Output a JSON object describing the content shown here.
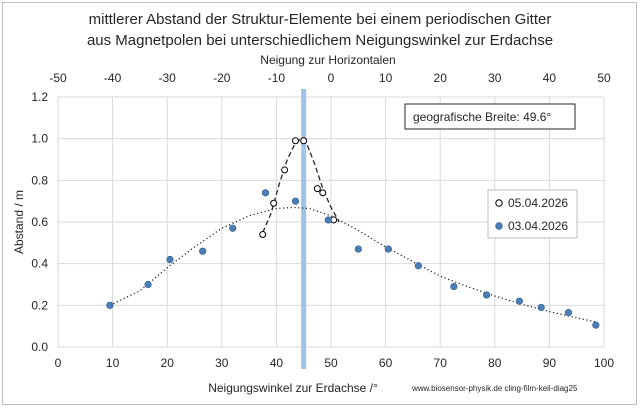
{
  "chart_data": {
    "type": "scatter",
    "title_lines": [
      "mittlerer Abstand der Struktur-Elemente bei einem periodischen Gitter",
      "aus Magnetpolen bei unterschiedlichem Neigungswinkel zur Erdachse"
    ],
    "xlabel": "Neigungswinkel zur Erdachse /°",
    "ylabel": "Abstand / m",
    "x2label": "Neigung zur Horizontalen",
    "xlim": [
      0,
      100
    ],
    "ylim": [
      0,
      1.2
    ],
    "x2lim": [
      -50,
      50
    ],
    "x_ticks": [
      "0",
      "10",
      "20",
      "30",
      "40",
      "50",
      "60",
      "70",
      "80",
      "90",
      "100"
    ],
    "y_ticks": [
      "0.0",
      "0.2",
      "0.4",
      "0.6",
      "0.8",
      "1.0",
      "1.2"
    ],
    "x2_ticks": [
      "-50",
      "-40",
      "-30",
      "-20",
      "-10",
      "0",
      "10",
      "20",
      "30",
      "40",
      "50"
    ],
    "grid": true,
    "legend_position": "right",
    "vertical_marker_x": 45,
    "annotation": "geografische Breite: 49.6°",
    "credit": "www.biosensor-physik.de  cling-film-keil-diag25",
    "series": [
      {
        "name": "05.04.2026",
        "marker": "open-circle",
        "color": "#000000",
        "x": [
          37.5,
          39.5,
          41.5,
          43.5,
          45.0,
          47.5,
          48.5,
          50.5
        ],
        "y": [
          0.54,
          0.69,
          0.85,
          0.99,
          0.99,
          0.76,
          0.74,
          0.61
        ]
      },
      {
        "name": "03.04.2026",
        "marker": "filled-circle",
        "color": "#4a7eb5",
        "x": [
          9.5,
          16.5,
          20.5,
          26.5,
          32.0,
          38.0,
          43.5,
          49.5,
          55.0,
          60.5,
          66.0,
          72.5,
          78.5,
          84.5,
          88.5,
          93.5,
          98.5
        ],
        "y": [
          0.2,
          0.3,
          0.42,
          0.46,
          0.57,
          0.74,
          0.7,
          0.61,
          0.47,
          0.47,
          0.39,
          0.29,
          0.25,
          0.22,
          0.19,
          0.165,
          0.105
        ]
      }
    ],
    "fits": [
      {
        "style": "dotted",
        "color": "#262626",
        "x": [
          9.5,
          15,
          20,
          25,
          30,
          35,
          40,
          43,
          46,
          50,
          55,
          60,
          65,
          70,
          75,
          80,
          85,
          90,
          95,
          98.5
        ],
        "y": [
          0.2,
          0.27,
          0.38,
          0.48,
          0.57,
          0.63,
          0.665,
          0.67,
          0.665,
          0.63,
          0.56,
          0.48,
          0.41,
          0.34,
          0.29,
          0.245,
          0.205,
          0.17,
          0.14,
          0.12
        ]
      },
      {
        "style": "dashed",
        "color": "#262626",
        "x": [
          37.5,
          39,
          40.5,
          42,
          43.5,
          44.5,
          45.5,
          47,
          48.5,
          50,
          51.5
        ],
        "y": [
          0.55,
          0.64,
          0.78,
          0.9,
          0.98,
          1.0,
          0.98,
          0.88,
          0.76,
          0.67,
          0.6
        ]
      }
    ]
  }
}
